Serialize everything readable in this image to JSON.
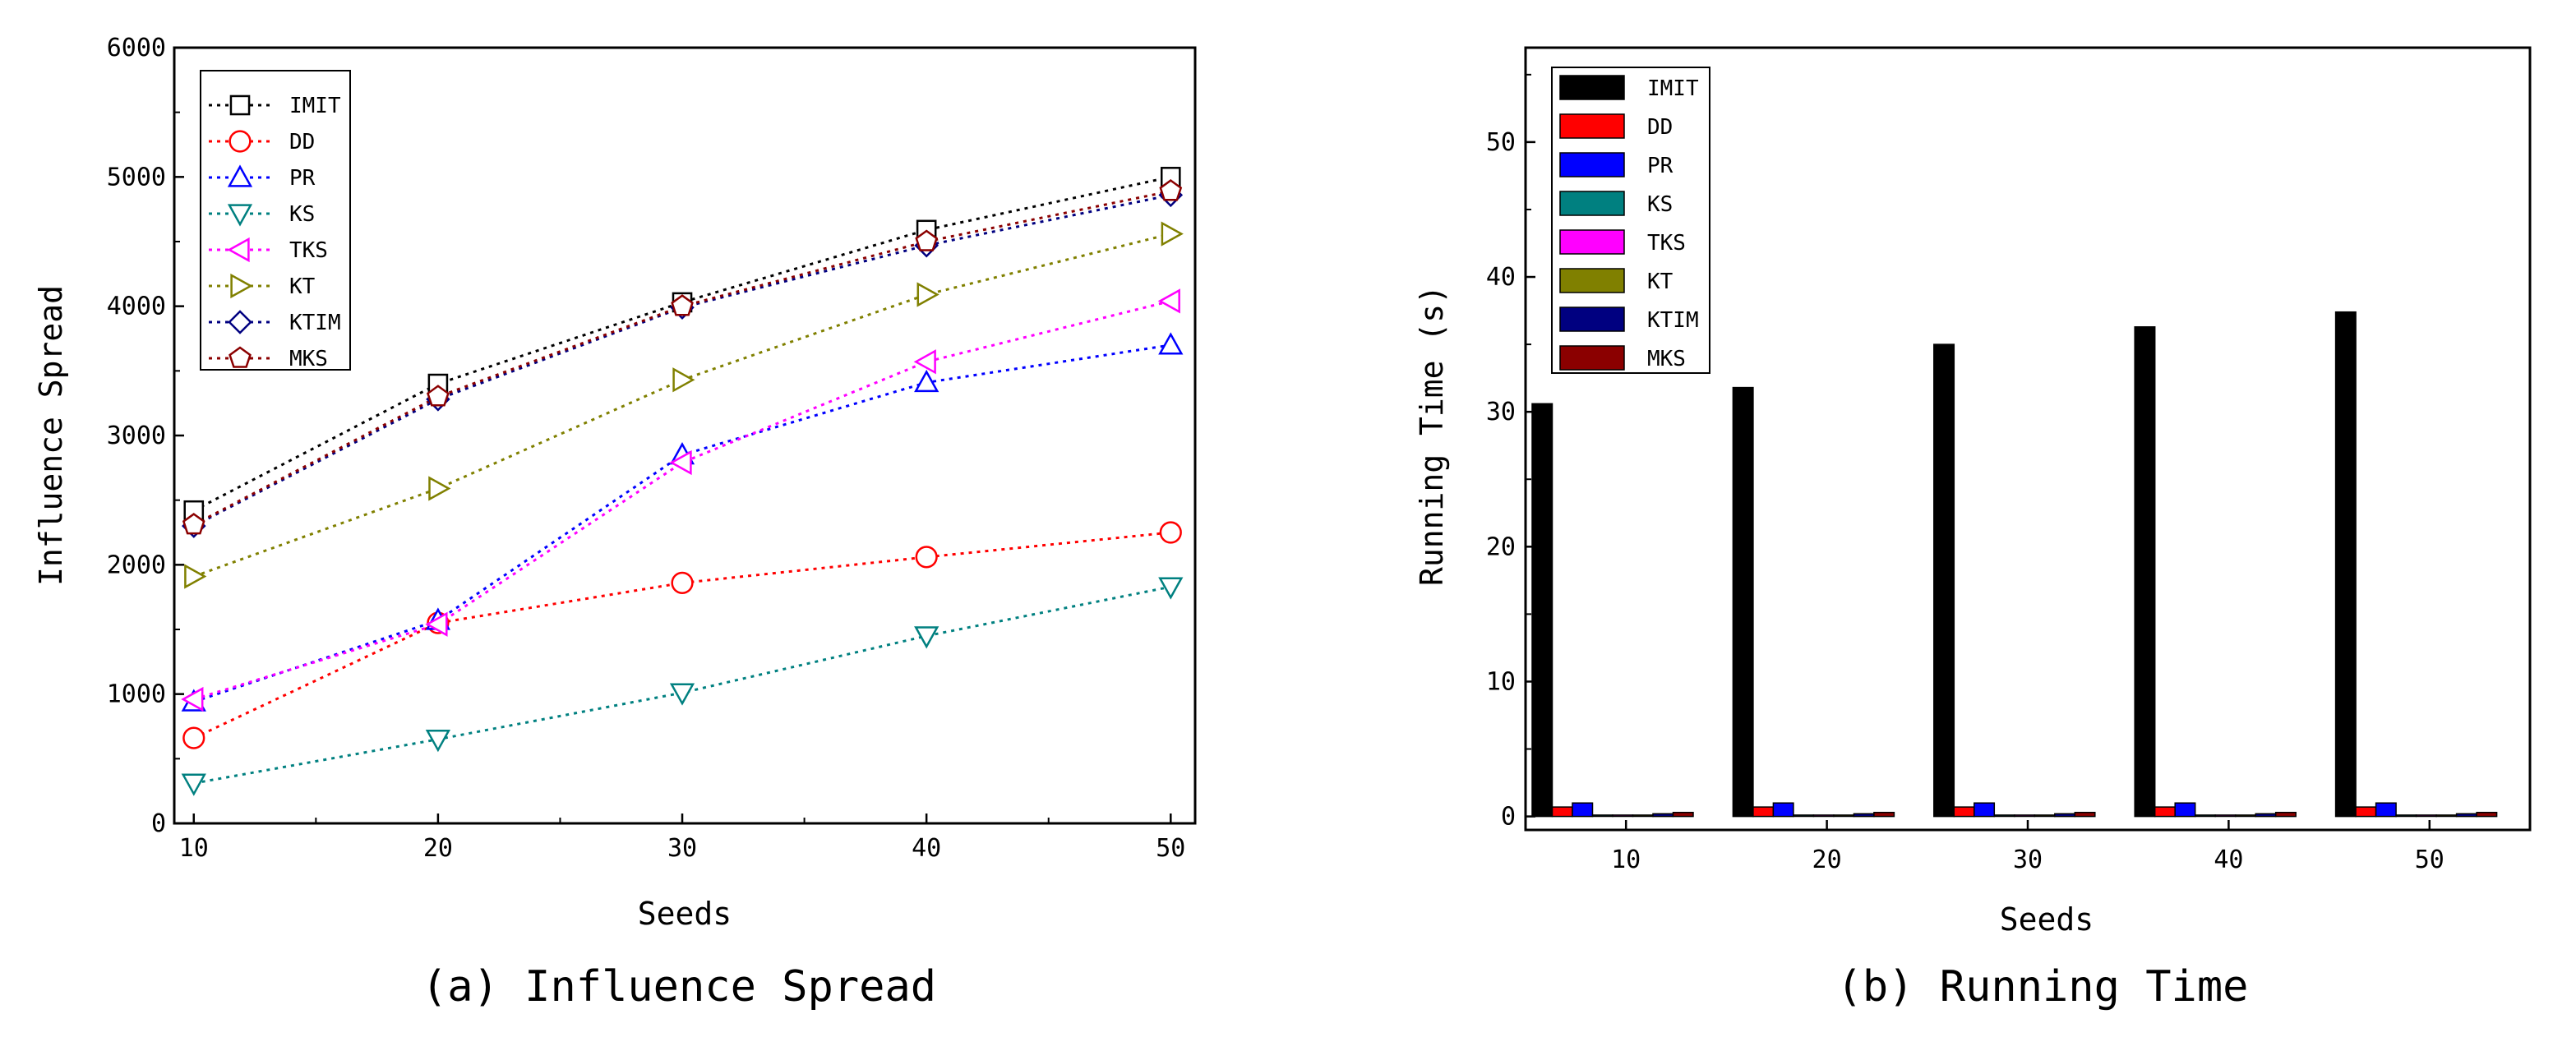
{
  "chart_data": [
    {
      "type": "line",
      "title": "",
      "caption": "(a) Influence Spread",
      "xlabel": "Seeds",
      "ylabel": "Influence Spread",
      "x": [
        10,
        20,
        30,
        40,
        50
      ],
      "x_ticks": [
        "10",
        "20",
        "30",
        "40",
        "50"
      ],
      "xlim": [
        9.2,
        51
      ],
      "ylim": [
        0,
        6000
      ],
      "y_ticks": [
        "0",
        "1000",
        "2000",
        "3000",
        "4000",
        "5000",
        "6000"
      ],
      "grid": false,
      "legend_position": "top-left",
      "series": [
        {
          "name": "IMIT",
          "marker": "square",
          "color": "#000000",
          "values": [
            2420,
            3400,
            4030,
            4590,
            5000
          ]
        },
        {
          "name": "DD",
          "marker": "circle",
          "color": "#ff0000",
          "values": [
            660,
            1550,
            1860,
            2060,
            2250
          ]
        },
        {
          "name": "PR",
          "marker": "triangle-up",
          "color": "#0000ff",
          "values": [
            940,
            1570,
            2850,
            3410,
            3700
          ]
        },
        {
          "name": "KS",
          "marker": "triangle-down",
          "color": "#008080",
          "values": [
            310,
            650,
            1010,
            1450,
            1830
          ]
        },
        {
          "name": "TKS",
          "marker": "triangle-left",
          "color": "#ff00ff",
          "values": [
            960,
            1540,
            2790,
            3570,
            4040
          ]
        },
        {
          "name": "KT",
          "marker": "triangle-right",
          "color": "#808000",
          "values": [
            1910,
            2590,
            3430,
            4090,
            4560
          ]
        },
        {
          "name": "KTIM",
          "marker": "diamond",
          "color": "#000080",
          "values": [
            2300,
            3280,
            3990,
            4470,
            4860
          ]
        },
        {
          "name": "MKS",
          "marker": "pentagon",
          "color": "#8b0000",
          "values": [
            2310,
            3300,
            4000,
            4500,
            4890
          ]
        }
      ]
    },
    {
      "type": "bar",
      "title": "",
      "caption": "(b) Running Time",
      "xlabel": "Seeds",
      "ylabel": "Running Time (s)",
      "categories": [
        "10",
        "20",
        "30",
        "40",
        "50"
      ],
      "ylim": [
        -1,
        57
      ],
      "y_ticks": [
        "0",
        "10",
        "20",
        "30",
        "40",
        "50"
      ],
      "grid": false,
      "legend_position": "top-left",
      "series": [
        {
          "name": "IMIT",
          "color": "#000000",
          "values": [
            30.6,
            31.8,
            35.0,
            36.3,
            37.4
          ]
        },
        {
          "name": "DD",
          "color": "#ff0000",
          "values": [
            0.7,
            0.7,
            0.7,
            0.7,
            0.7
          ]
        },
        {
          "name": "PR",
          "color": "#0000ff",
          "values": [
            1.0,
            1.0,
            1.0,
            1.0,
            1.0
          ]
        },
        {
          "name": "KS",
          "color": "#008080",
          "values": [
            0.1,
            0.1,
            0.1,
            0.1,
            0.1
          ]
        },
        {
          "name": "TKS",
          "color": "#ff00ff",
          "values": [
            0.1,
            0.1,
            0.1,
            0.1,
            0.1
          ]
        },
        {
          "name": "KT",
          "color": "#808000",
          "values": [
            0.1,
            0.1,
            0.1,
            0.1,
            0.1
          ]
        },
        {
          "name": "KTIM",
          "color": "#000080",
          "values": [
            0.2,
            0.2,
            0.2,
            0.2,
            0.2
          ]
        },
        {
          "name": "MKS",
          "color": "#8b0000",
          "values": [
            0.3,
            0.3,
            0.3,
            0.3,
            0.3
          ]
        }
      ]
    }
  ]
}
